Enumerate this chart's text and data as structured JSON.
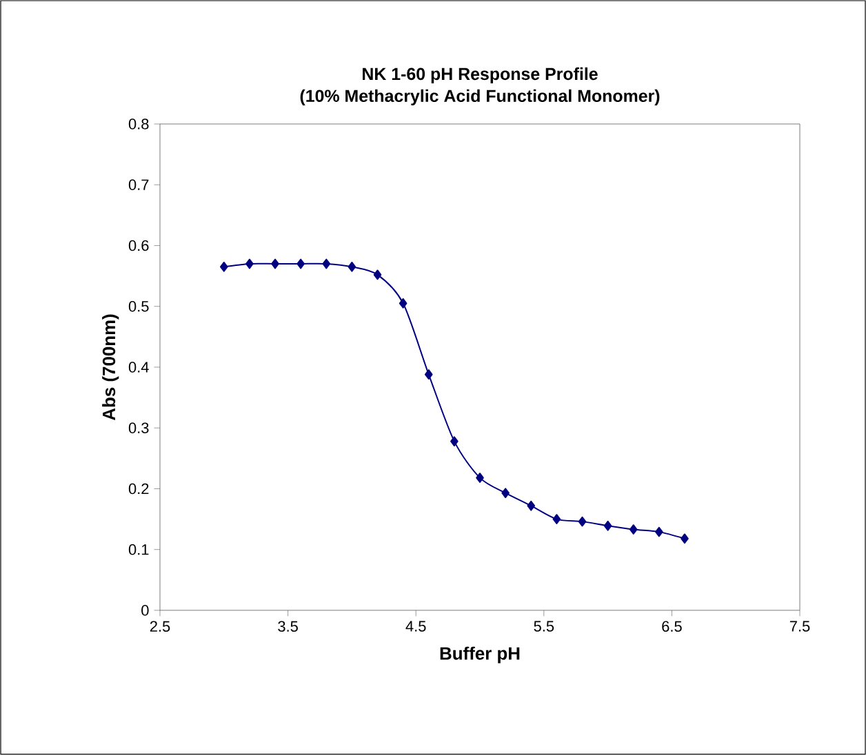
{
  "chart_data": {
    "type": "line",
    "title": "NK 1-60 pH Response Profile",
    "subtitle": "(10% Methacrylic Acid Functional Monomer)",
    "xlabel": "Buffer pH",
    "ylabel": "Abs (700nm)",
    "x": [
      3.0,
      3.2,
      3.4,
      3.6,
      3.8,
      4.0,
      4.2,
      4.4,
      4.6,
      4.8,
      5.0,
      5.2,
      5.4,
      5.6,
      5.8,
      6.0,
      6.2,
      6.4,
      6.6
    ],
    "series": [
      {
        "color": "#000080",
        "values": [
          0.565,
          0.57,
          0.57,
          0.57,
          0.57,
          0.565,
          0.552,
          0.505,
          0.388,
          0.278,
          0.218,
          0.193,
          0.172,
          0.15,
          0.146,
          0.139,
          0.133,
          0.129,
          0.118
        ]
      }
    ],
    "xlim": [
      2.5,
      7.5
    ],
    "xticks": [
      2.5,
      3.5,
      4.5,
      5.5,
      6.5,
      7.5
    ],
    "ylim": [
      0,
      0.8
    ],
    "yticks": [
      0,
      0.1,
      0.2,
      0.3,
      0.4,
      0.5,
      0.6,
      0.7,
      0.8
    ],
    "marker": "diamond",
    "line_style": "solid",
    "grid": false
  }
}
